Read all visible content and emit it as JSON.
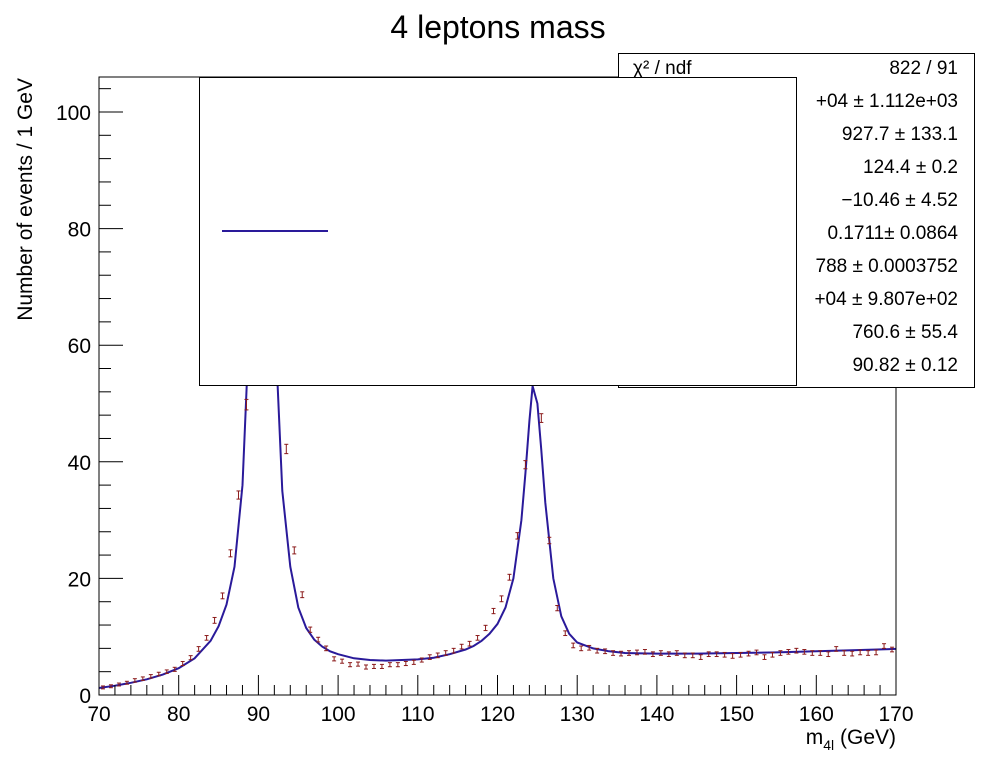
{
  "colors": {
    "fit_line": "#2a1a9a",
    "data_points": "#8b1a1a",
    "axis": "#000000"
  },
  "chart_data": {
    "type": "scatter",
    "title": "4 leptons mass",
    "xlabel": "m_{4l} (GeV)",
    "ylabel": "Number of events / 1 GeV",
    "xlim": [
      70,
      170
    ],
    "ylim": [
      0,
      106
    ],
    "x_ticks": [
      "70",
      "80",
      "90",
      "100",
      "110",
      "120",
      "130",
      "140",
      "150",
      "160",
      "170"
    ],
    "y_ticks": [
      "0",
      "20",
      "40",
      "60",
      "80",
      "100"
    ],
    "grid": false,
    "legend_placement": "top-center",
    "series": [
      {
        "name": "",
        "kind": "points-with-errors",
        "x": [
          70.5,
          71.5,
          72.5,
          73.5,
          74.5,
          75.5,
          76.5,
          77.5,
          78.5,
          79.5,
          80.5,
          81.5,
          82.5,
          83.5,
          84.5,
          85.5,
          86.5,
          87.5,
          88.5,
          93.5,
          94.5,
          95.5,
          96.5,
          97.5,
          98.5,
          99.5,
          100.5,
          101.5,
          102.5,
          103.5,
          104.5,
          105.5,
          106.5,
          107.5,
          108.5,
          109.5,
          110.5,
          111.5,
          112.5,
          113.5,
          114.5,
          115.5,
          116.5,
          117.5,
          118.5,
          119.5,
          120.5,
          121.5,
          122.5,
          123.5,
          125.5,
          126.5,
          127.5,
          128.5,
          129.5,
          130.5,
          131.5,
          132.5,
          133.5,
          134.5,
          135.5,
          136.5,
          137.5,
          138.5,
          139.5,
          140.5,
          141.5,
          142.5,
          143.5,
          144.5,
          145.5,
          146.5,
          147.5,
          148.5,
          149.5,
          150.5,
          151.5,
          152.5,
          153.5,
          154.5,
          155.5,
          156.5,
          157.5,
          158.5,
          159.5,
          160.5,
          161.5,
          162.5,
          163.5,
          164.5,
          165.5,
          166.5,
          167.5,
          168.5,
          169.5
        ],
        "y": [
          1.3,
          1.5,
          1.8,
          2.1,
          2.5,
          2.8,
          3.2,
          3.6,
          4.0,
          4.4,
          5.4,
          6.4,
          7.9,
          9.8,
          12.8,
          17.0,
          24.3,
          34.3,
          49.8,
          42.2,
          24.8,
          17.2,
          11.2,
          9.5,
          8.0,
          6.2,
          5.8,
          5.2,
          5.3,
          4.8,
          4.9,
          4.9,
          5.2,
          5.2,
          5.4,
          5.6,
          6.0,
          6.5,
          6.8,
          7.2,
          7.6,
          8.3,
          8.8,
          9.8,
          11.5,
          14.4,
          16.5,
          20.2,
          27.3,
          39.5,
          47.5,
          26.5,
          14.9,
          10.6,
          8.5,
          8.0,
          8.1,
          7.6,
          7.5,
          7.2,
          7.1,
          7.2,
          7.3,
          7.4,
          7.0,
          7.2,
          7.0,
          7.2,
          6.8,
          6.8,
          6.5,
          7.0,
          7.0,
          6.9,
          6.7,
          6.9,
          7.1,
          7.3,
          6.5,
          6.9,
          7.2,
          7.4,
          7.6,
          7.4,
          7.2,
          7.2,
          7.0,
          7.9,
          7.2,
          7.1,
          7.3,
          7.2,
          7.3,
          8.4,
          7.8
        ],
        "err": [
          0.25,
          0.25,
          0.25,
          0.25,
          0.3,
          0.3,
          0.3,
          0.3,
          0.3,
          0.35,
          0.35,
          0.35,
          0.4,
          0.4,
          0.5,
          0.5,
          0.6,
          0.7,
          0.9,
          0.8,
          0.6,
          0.5,
          0.45,
          0.4,
          0.4,
          0.35,
          0.35,
          0.35,
          0.35,
          0.35,
          0.35,
          0.35,
          0.35,
          0.35,
          0.35,
          0.35,
          0.35,
          0.4,
          0.4,
          0.4,
          0.4,
          0.4,
          0.4,
          0.4,
          0.45,
          0.45,
          0.5,
          0.5,
          0.55,
          0.7,
          0.75,
          0.55,
          0.45,
          0.4,
          0.4,
          0.4,
          0.4,
          0.4,
          0.4,
          0.4,
          0.4,
          0.4,
          0.4,
          0.4,
          0.4,
          0.4,
          0.4,
          0.4,
          0.4,
          0.4,
          0.4,
          0.4,
          0.4,
          0.4,
          0.4,
          0.4,
          0.4,
          0.4,
          0.4,
          0.4,
          0.4,
          0.4,
          0.4,
          0.4,
          0.4,
          0.4,
          0.4,
          0.4,
          0.4,
          0.4,
          0.4,
          0.4,
          0.4,
          0.4,
          0.4
        ]
      },
      {
        "name": "",
        "kind": "fit-curve",
        "x": [
          70,
          72,
          74,
          76,
          78,
          80,
          82,
          84,
          85,
          86,
          87,
          88,
          89,
          90,
          91,
          91.5,
          92,
          93,
          94,
          95,
          96,
          97,
          98,
          99,
          100,
          102,
          104,
          106,
          108,
          110,
          112,
          114,
          116,
          117,
          118,
          119,
          120,
          121,
          122,
          123,
          123.5,
          124,
          124.4,
          125,
          125.5,
          126,
          127,
          128,
          129,
          130,
          132,
          134,
          136,
          140,
          145,
          150,
          155,
          160,
          165,
          170
        ],
        "y": [
          1.2,
          1.6,
          2.1,
          2.7,
          3.5,
          4.6,
          6.3,
          9.3,
          11.8,
          15.5,
          22.0,
          36.0,
          68.0,
          105.0,
          105.0,
          90.0,
          66.0,
          35.0,
          22.0,
          15.0,
          11.5,
          9.5,
          8.3,
          7.5,
          7.0,
          6.3,
          6.0,
          5.9,
          6.0,
          6.1,
          6.4,
          7.0,
          7.8,
          8.4,
          9.3,
          10.5,
          12.2,
          15.0,
          20.0,
          30.0,
          38.0,
          47.0,
          53.0,
          50.0,
          42.0,
          33.0,
          20.0,
          13.5,
          10.5,
          9.0,
          8.0,
          7.5,
          7.2,
          7.1,
          7.1,
          7.2,
          7.3,
          7.5,
          7.7,
          7.9
        ]
      }
    ],
    "stats": {
      "rows": [
        {
          "label": "χ² / ndf",
          "value": "822 / 91"
        },
        {
          "label": "",
          "value": "+04 ± 1.112e+03"
        },
        {
          "label": "",
          "value": "927.7 ± 133.1"
        },
        {
          "label": "",
          "value": "124.4 ± 0.2"
        },
        {
          "label": "",
          "value": "−10.46 ± 4.52"
        },
        {
          "label": "",
          "value": "0.1711± 0.0864"
        },
        {
          "label": "",
          "value": "788 ± 0.0003752"
        },
        {
          "label": "",
          "value": "+04 ± 9.807e+02"
        },
        {
          "label": "",
          "value": "760.6 ± 55.4"
        },
        {
          "label": "",
          "value": "90.82 ± 0.12"
        }
      ]
    }
  }
}
